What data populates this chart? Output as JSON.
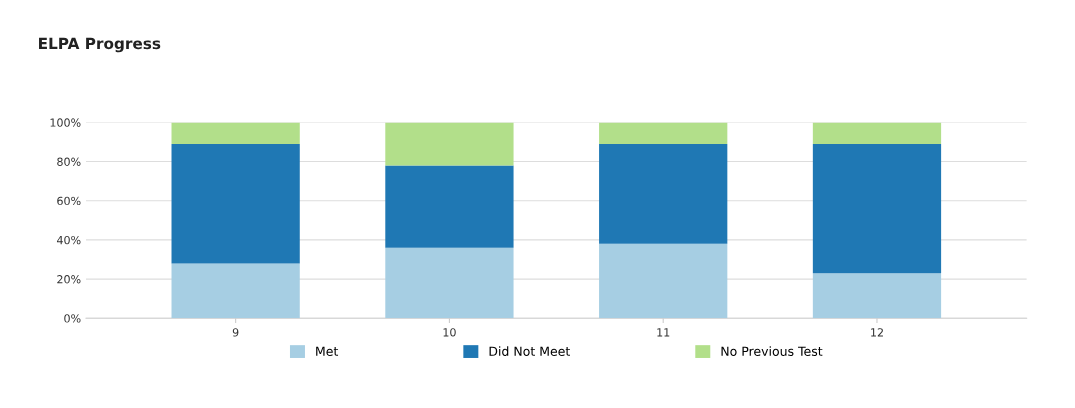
{
  "chart_data": {
    "type": "bar",
    "title": "ELPA Progress",
    "stacked": true,
    "categories": [
      "9",
      "10",
      "11",
      "12"
    ],
    "series": [
      {
        "name": "Met",
        "color": "#a6cee3",
        "values": [
          28,
          36,
          38,
          23
        ]
      },
      {
        "name": "Did Not Meet",
        "color": "#1f78b4",
        "values": [
          61,
          42,
          51,
          66
        ]
      },
      {
        "name": "No Previous Test",
        "color": "#b2df8a",
        "values": [
          11,
          22,
          11,
          11
        ]
      }
    ],
    "ylim": [
      0,
      100
    ],
    "yticks": [
      {
        "value": 0,
        "label": "0%"
      },
      {
        "value": 20,
        "label": "20%"
      },
      {
        "value": 40,
        "label": "40%"
      },
      {
        "value": 60,
        "label": "60%"
      },
      {
        "value": 80,
        "label": "80%"
      },
      {
        "value": 100,
        "label": "100%"
      }
    ],
    "grid": "y",
    "legend": "bottom"
  }
}
